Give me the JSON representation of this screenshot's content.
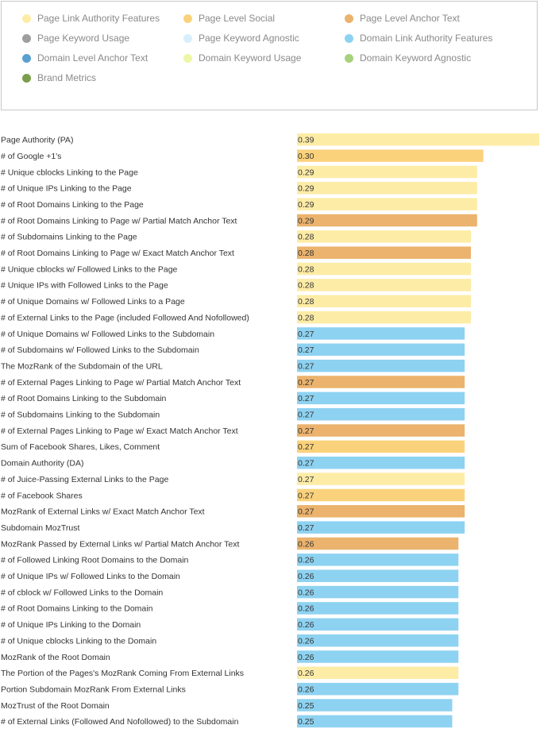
{
  "legend": {
    "items": [
      {
        "label": "Page Link Authority Features",
        "color": "#fdeca6"
      },
      {
        "label": "Page Level Social",
        "color": "#fbd27c"
      },
      {
        "label": "Page Level Anchor Text",
        "color": "#ebb36d"
      },
      {
        "label": "Page Keyword Usage",
        "color": "#9e9e9e"
      },
      {
        "label": "Page Keyword Agnostic",
        "color": "#d6effa"
      },
      {
        "label": "Domain Link Authority Features",
        "color": "#8ed2f1"
      },
      {
        "label": "Domain Level Anchor Text",
        "color": "#5aa0cf"
      },
      {
        "label": "Domain Keyword Usage",
        "color": "#eef6a6"
      },
      {
        "label": "Domain Keyword Agnostic",
        "color": "#a7d17c"
      },
      {
        "label": "Brand Metrics",
        "color": "#7a9e4a"
      }
    ]
  },
  "chart_data": {
    "type": "bar",
    "orientation": "horizontal",
    "title": "",
    "xlabel": "",
    "ylabel": "",
    "xlim": [
      0,
      0.39
    ],
    "grid": false,
    "legend_position": "top",
    "bars": [
      {
        "label": "Page Authority (PA)",
        "value": 0.39,
        "value_label": "0.39",
        "group": "Page Link Authority Features"
      },
      {
        "label": "# of Google +1's",
        "value": 0.3,
        "value_label": "0.30",
        "group": "Page Level Social"
      },
      {
        "label": "# Unique cblocks Linking to the Page",
        "value": 0.29,
        "value_label": "0.29",
        "group": "Page Link Authority Features"
      },
      {
        "label": "# of Unique IPs Linking to the Page",
        "value": 0.29,
        "value_label": "0.29",
        "group": "Page Link Authority Features"
      },
      {
        "label": "# of Root Domains Linking to the Page",
        "value": 0.29,
        "value_label": "0.29",
        "group": "Page Link Authority Features"
      },
      {
        "label": "# of Root Domains Linking to Page w/ Partial Match Anchor Text",
        "value": 0.29,
        "value_label": "0.29",
        "group": "Page Level Anchor Text"
      },
      {
        "label": "# of Subdomains Linking to the Page",
        "value": 0.28,
        "value_label": "0.28",
        "group": "Page Link Authority Features"
      },
      {
        "label": "# of Root Domains Linking to Page w/ Exact Match Anchor Text",
        "value": 0.28,
        "value_label": "0.28",
        "group": "Page Level Anchor Text"
      },
      {
        "label": "# Unique cblocks w/ Followed Links to the Page",
        "value": 0.28,
        "value_label": "0.28",
        "group": "Page Link Authority Features"
      },
      {
        "label": "# Unique IPs with Followed Links to the Page",
        "value": 0.28,
        "value_label": "0.28",
        "group": "Page Link Authority Features"
      },
      {
        "label": "# of Unique Domains w/ Followed Links to a Page",
        "value": 0.28,
        "value_label": "0.28",
        "group": "Page Link Authority Features"
      },
      {
        "label": "# of External Links to the Page (included Followed And Nofollowed)",
        "value": 0.28,
        "value_label": "0.28",
        "group": "Page Link Authority Features"
      },
      {
        "label": "# of Unique Domains w/ Followed Links to the Subdomain",
        "value": 0.27,
        "value_label": "0.27",
        "group": "Domain Link Authority Features"
      },
      {
        "label": "# of Subdomains w/ Followed Links to the Subdomain",
        "value": 0.27,
        "value_label": "0.27",
        "group": "Domain Link Authority Features"
      },
      {
        "label": "The MozRank of the Subdomain of the URL",
        "value": 0.27,
        "value_label": "0.27",
        "group": "Domain Link Authority Features"
      },
      {
        "label": "# of External Pages Linking to Page w/ Partial Match Anchor Text",
        "value": 0.27,
        "value_label": "0.27",
        "group": "Page Level Anchor Text"
      },
      {
        "label": "# of Root Domains Linking to the Subdomain",
        "value": 0.27,
        "value_label": "0.27",
        "group": "Domain Link Authority Features"
      },
      {
        "label": "# of Subdomains Linking to the Subdomain",
        "value": 0.27,
        "value_label": "0.27",
        "group": "Domain Link Authority Features"
      },
      {
        "label": "# of External Pages Linking to Page w/ Exact Match Anchor Text",
        "value": 0.27,
        "value_label": "0.27",
        "group": "Page Level Anchor Text"
      },
      {
        "label": "Sum of Facebook Shares, Likes, Comment",
        "value": 0.27,
        "value_label": "0.27",
        "group": "Page Level Social"
      },
      {
        "label": "Domain Authority (DA)",
        "value": 0.27,
        "value_label": "0.27",
        "group": "Domain Link Authority Features"
      },
      {
        "label": "# of Juice-Passing External Links to the Page",
        "value": 0.27,
        "value_label": "0.27",
        "group": "Page Link Authority Features"
      },
      {
        "label": "# of Facebook Shares",
        "value": 0.27,
        "value_label": "0.27",
        "group": "Page Level Social"
      },
      {
        "label": "MozRank of External Links w/ Exact Match Anchor Text",
        "value": 0.27,
        "value_label": "0.27",
        "group": "Page Level Anchor Text"
      },
      {
        "label": "Subdomain MozTrust",
        "value": 0.27,
        "value_label": "0.27",
        "group": "Domain Link Authority Features"
      },
      {
        "label": "MozRank Passed by External Links w/ Partial Match Anchor Text",
        "value": 0.26,
        "value_label": "0.26",
        "group": "Page Level Anchor Text"
      },
      {
        "label": "# of Followed Linking Root Domains to the Domain",
        "value": 0.26,
        "value_label": "0.26",
        "group": "Domain Link Authority Features"
      },
      {
        "label": "# of Unique IPs w/ Followed Links to the Domain",
        "value": 0.26,
        "value_label": "0.26",
        "group": "Domain Link Authority Features"
      },
      {
        "label": "# of cblock w/ Followed Links to the Domain",
        "value": 0.26,
        "value_label": "0.26",
        "group": "Domain Link Authority Features"
      },
      {
        "label": "# of Root Domains Linking to the Domain",
        "value": 0.26,
        "value_label": "0.26",
        "group": "Domain Link Authority Features"
      },
      {
        "label": "# of Unique IPs Linking to the Domain",
        "value": 0.26,
        "value_label": "0.26",
        "group": "Domain Link Authority Features"
      },
      {
        "label": "# of Unique cblocks Linking to the Domain",
        "value": 0.26,
        "value_label": "0.26",
        "group": "Domain Link Authority Features"
      },
      {
        "label": "MozRank of the Root Domain",
        "value": 0.26,
        "value_label": "0.26",
        "group": "Domain Link Authority Features"
      },
      {
        "label": "The Portion of the Pages's MozRank Coming From External Links",
        "value": 0.26,
        "value_label": "0.26",
        "group": "Page Link Authority Features"
      },
      {
        "label": "Portion Subdomain MozRank From External Links",
        "value": 0.26,
        "value_label": "0.26",
        "group": "Domain Link Authority Features"
      },
      {
        "label": "MozTrust of the Root Domain",
        "value": 0.25,
        "value_label": "0.25",
        "group": "Domain Link Authority Features"
      },
      {
        "label": "# of External Links (Followed And Nofollowed) to the Subdomain",
        "value": 0.25,
        "value_label": "0.25",
        "group": "Domain Link Authority Features"
      }
    ]
  }
}
